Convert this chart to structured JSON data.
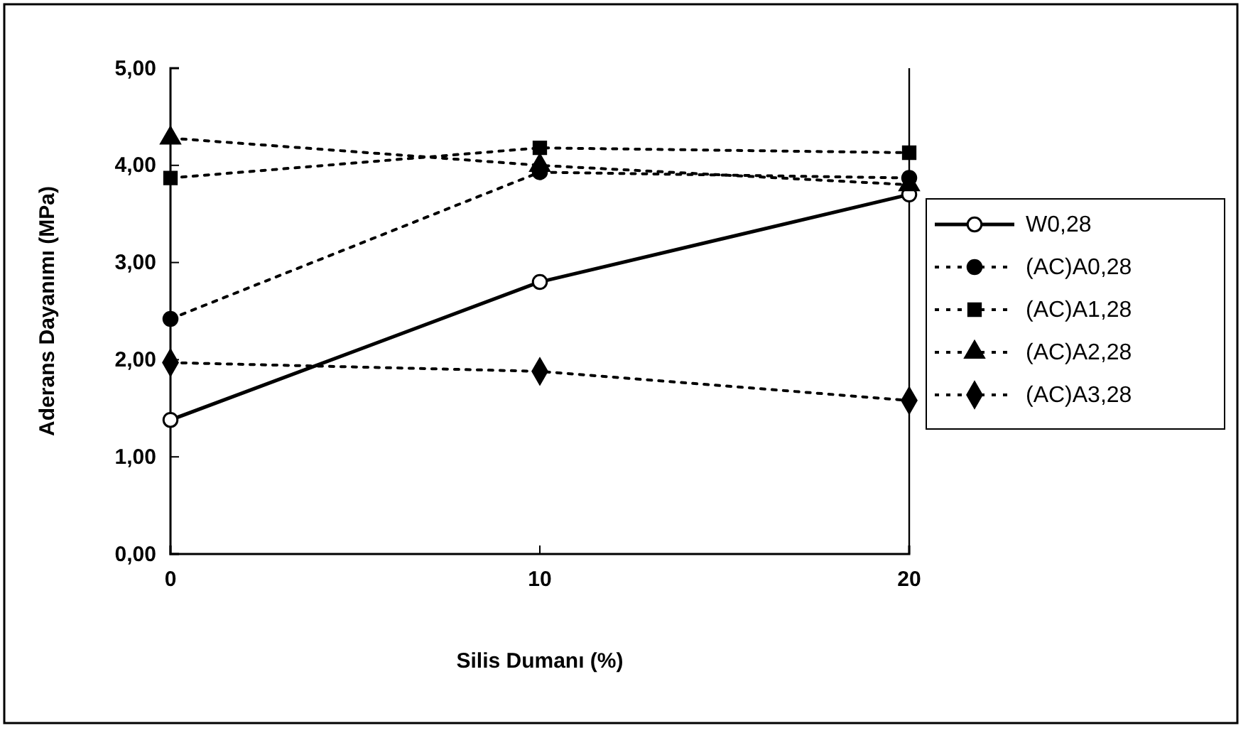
{
  "chart_data": {
    "type": "line",
    "xlabel": "Silis Dumanı (%)",
    "ylabel": "Aderans Dayanımı (MPa)",
    "x": [
      0,
      10,
      20
    ],
    "xlim": [
      0,
      20
    ],
    "xticks": [
      0,
      10,
      20
    ],
    "ylim": [
      0,
      5
    ],
    "yticks": [
      {
        "value": 0,
        "label": "0,00"
      },
      {
        "value": 1,
        "label": "1,00"
      },
      {
        "value": 2,
        "label": "2,00"
      },
      {
        "value": 3,
        "label": "3,00"
      },
      {
        "value": 4,
        "label": "4,00"
      },
      {
        "value": 5,
        "label": "5,00"
      }
    ],
    "grid": false,
    "legend": "right",
    "series": [
      {
        "name": "W0,28",
        "color": "#000000",
        "values": [
          1.38,
          2.8,
          3.7
        ],
        "marker": "circle",
        "line_style": "solid"
      },
      {
        "name": "(AC)A0,28",
        "color": "#000000",
        "values": [
          2.42,
          3.93,
          3.87
        ],
        "marker": "circle",
        "line_style": "dotted"
      },
      {
        "name": "(AC)A1,28",
        "color": "#000000",
        "values": [
          3.87,
          4.18,
          4.13
        ],
        "marker": "square",
        "line_style": "dotted"
      },
      {
        "name": "(AC)A2,28",
        "color": "#000000",
        "values": [
          4.28,
          4.0,
          3.8
        ],
        "marker": "triangle",
        "line_style": "dotted"
      },
      {
        "name": "(AC)A3,28",
        "color": "#000000",
        "values": [
          1.97,
          1.88,
          1.58
        ],
        "marker": "diamond",
        "line_style": "dotted"
      }
    ]
  }
}
